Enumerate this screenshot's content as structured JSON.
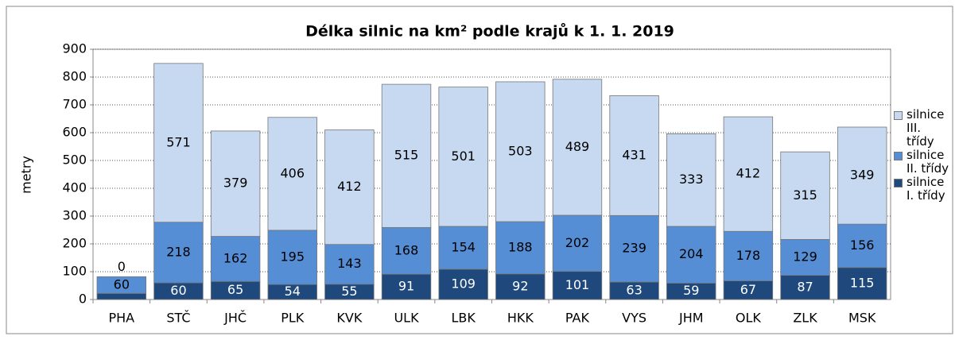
{
  "chart_data": {
    "type": "stacked_bar",
    "title": "Délka silnic na km² podle krajů k 1. 1. 2019",
    "y_label": "metry",
    "categories": [
      "PHA",
      "STČ",
      "JHČ",
      "PLK",
      "KVK",
      "ULK",
      "LBK",
      "HKK",
      "PAK",
      "VYS",
      "JHM",
      "OLK",
      "ZLK",
      "MSK"
    ],
    "series": [
      {
        "name": "silnice I. třídy",
        "color": "#1f497d",
        "values": [
          22,
          60,
          65,
          54,
          55,
          91,
          109,
          92,
          101,
          63,
          59,
          67,
          87,
          115
        ],
        "value_labels": [
          null,
          "60",
          "65",
          "54",
          "55",
          "91",
          "109",
          "92",
          "101",
          "63",
          "59",
          "67",
          "87",
          "115"
        ]
      },
      {
        "name": "silnice II. třídy",
        "color": "#558ed5",
        "values": [
          60,
          218,
          162,
          195,
          143,
          168,
          154,
          188,
          202,
          239,
          204,
          178,
          129,
          156
        ]
      },
      {
        "name": "silnice III. třídy",
        "color": "#c6d9f1",
        "values": [
          0,
          571,
          379,
          406,
          412,
          515,
          501,
          503,
          489,
          431,
          333,
          412,
          315,
          349
        ]
      }
    ],
    "ylim": [
      0,
      900
    ],
    "yticks": [
      0,
      100,
      200,
      300,
      400,
      500,
      600,
      700,
      800,
      900
    ],
    "grid": true,
    "legend": "right"
  }
}
